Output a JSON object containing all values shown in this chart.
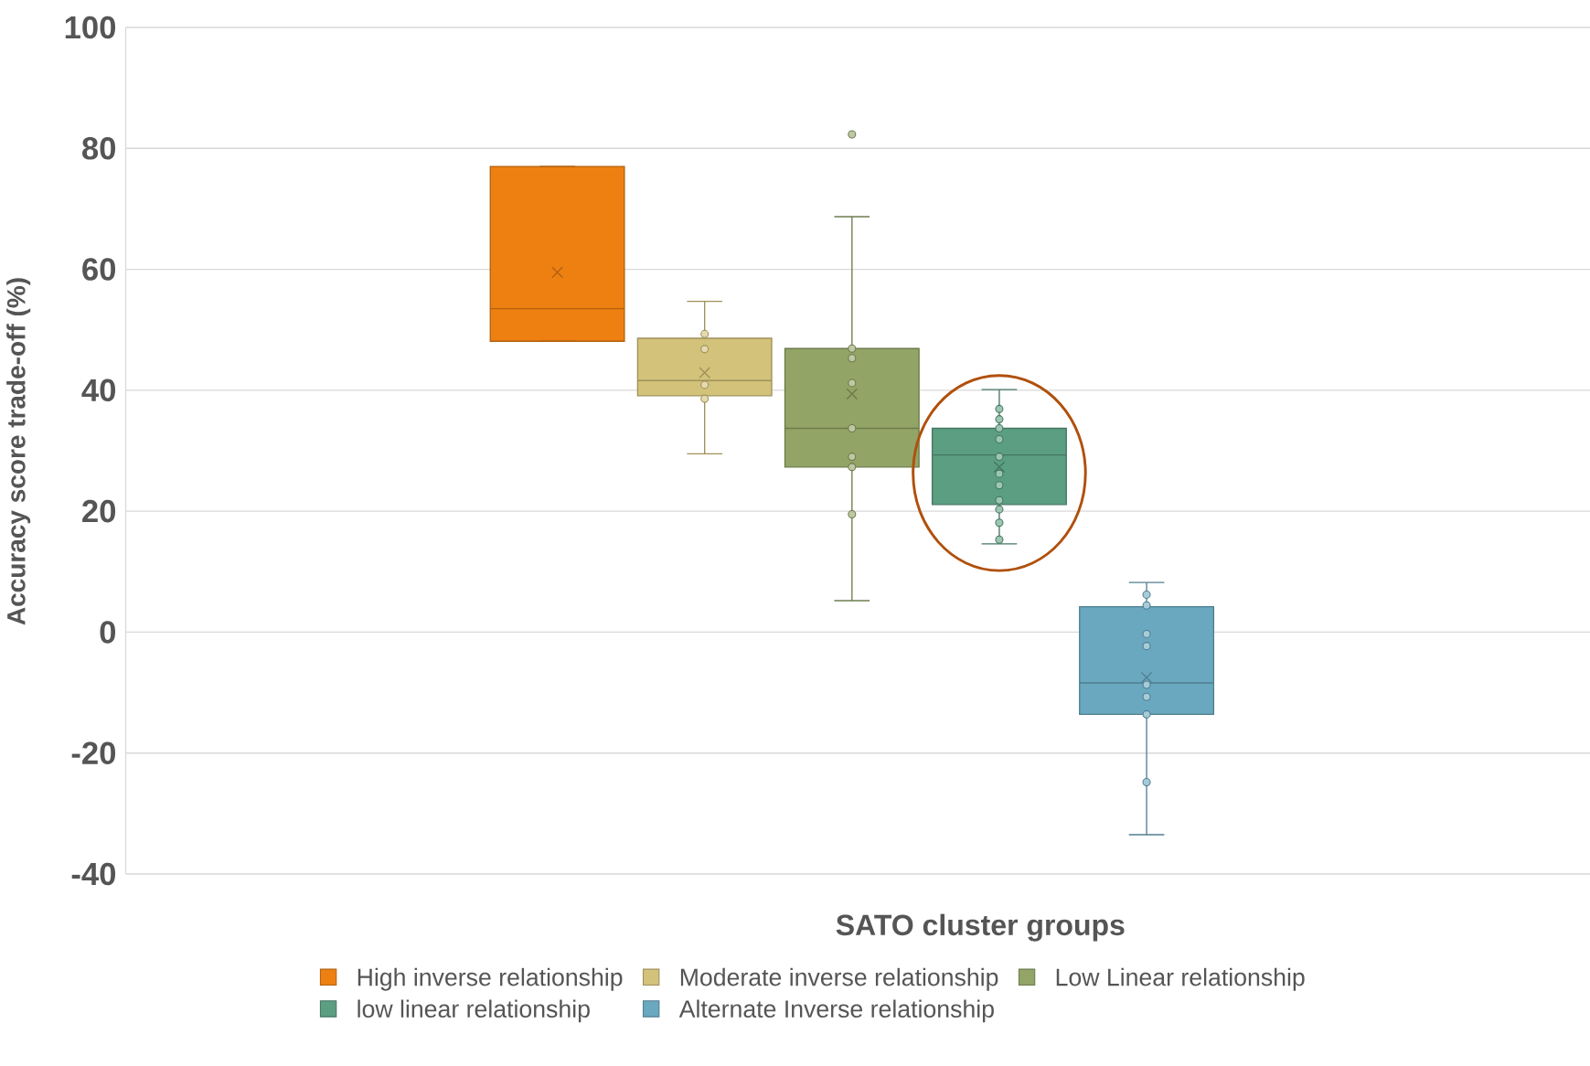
{
  "chart_data": {
    "type": "box",
    "xlabel": "SATO cluster groups",
    "ylabel": "Accuracy score trade-off (%)",
    "categories": [
      null
    ],
    "series": [
      {
        "name": "High inverse relationship",
        "color": "#ee8012",
        "boxes": [
          {
            "low": 48.1,
            "q1": 48.1,
            "median": 53.5,
            "q3": 77.0,
            "high": 77.0,
            "mean": 59.5
          }
        ]
      },
      {
        "name": "Moderate inverse relationship",
        "color": "#d3c27a",
        "boxes": [
          {
            "low": 29.5,
            "q1": 39.1,
            "median": 41.6,
            "q3": 48.6,
            "high": 54.7,
            "mean": 42.9,
            "outliers": [
              49.3,
              46.8,
              40.9,
              38.6
            ]
          }
        ]
      },
      {
        "name": "Low Linear relationship",
        "color": "#92a466",
        "boxes": [
          {
            "low": 5.2,
            "q1": 27.3,
            "median": 33.7,
            "q3": 46.9,
            "high": 68.7,
            "mean": 39.4,
            "outliers": [
              82.3,
              46.9,
              45.3,
              41.2,
              33.7,
              29.0,
              27.3,
              19.5
            ]
          }
        ]
      },
      {
        "name": "low linear relationship",
        "color": "#5b9e82",
        "boxes": [
          {
            "low": 14.6,
            "q1": 21.1,
            "median": 29.3,
            "q3": 33.7,
            "high": 40.1,
            "mean": 27.3,
            "outliers": [
              36.9,
              35.2,
              33.7,
              31.9,
              29.0,
              26.2,
              24.3,
              21.8,
              20.3,
              18.1,
              15.3
            ]
          }
        ]
      },
      {
        "name": "Alternate Inverse relationship",
        "color": "#6aa8c0",
        "boxes": [
          {
            "low": -33.5,
            "q1": -13.6,
            "median": -8.4,
            "q3": 4.2,
            "high": 8.2,
            "mean": -7.5,
            "outliers": [
              6.2,
              4.4,
              -0.3,
              -2.3,
              -8.7,
              -10.7,
              -13.6,
              -24.8
            ]
          }
        ]
      }
    ],
    "ylim": [
      -40,
      100
    ],
    "yticks": [
      -40,
      -20,
      0,
      20,
      40,
      60,
      80,
      100
    ],
    "grid": "y",
    "legend": "bottom"
  }
}
